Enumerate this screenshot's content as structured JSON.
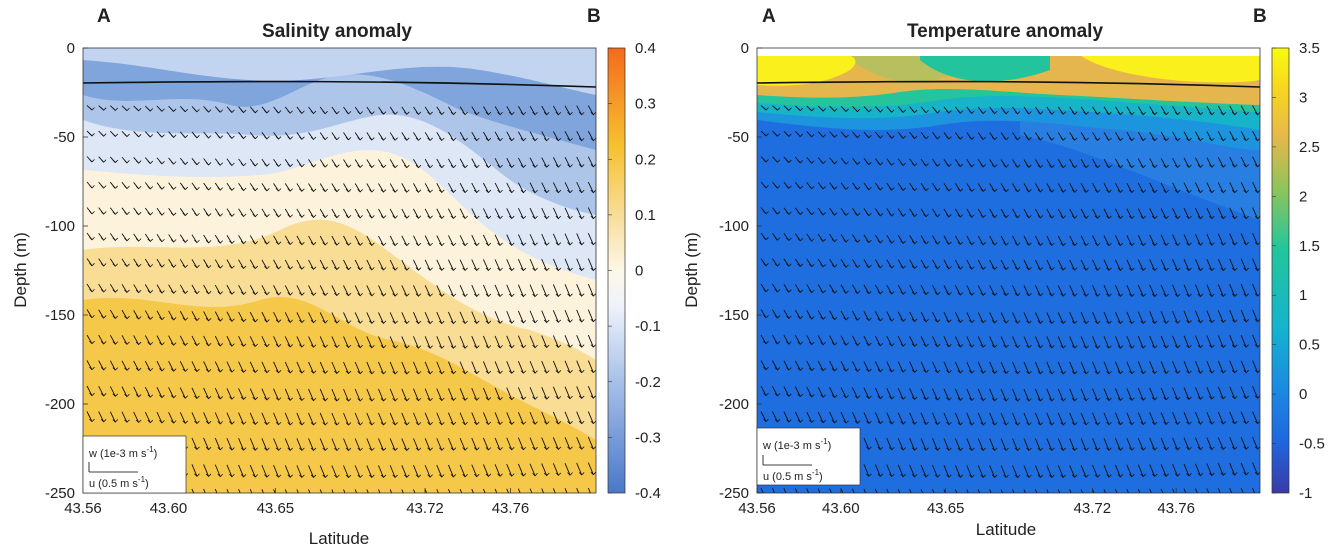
{
  "chart_data": [
    {
      "type": "heatmap",
      "panel_letter_left": "A",
      "panel_letter_right": "B",
      "title": "Salinity anomaly",
      "xlabel": "Latitude",
      "ylabel": "Depth (m)",
      "xlim": [
        43.56,
        43.8
      ],
      "ylim": [
        -250,
        0
      ],
      "x_ticks": [
        43.56,
        43.6,
        43.65,
        43.72,
        43.76
      ],
      "x_tick_labels": [
        "43.56",
        "43.60",
        "43.65",
        "43.72",
        "43.76"
      ],
      "y_ticks": [
        0,
        -50,
        -100,
        -150,
        -200,
        -250
      ],
      "y_tick_labels": [
        "0",
        "-50",
        "-100",
        "-150",
        "-200",
        "-250"
      ],
      "colorbar": {
        "range": [
          -0.4,
          0.4
        ],
        "ticks": [
          0.4,
          0.3,
          0.2,
          0.1,
          0,
          -0.1,
          -0.2,
          -0.3,
          -0.4
        ],
        "tick_labels": [
          "0.4",
          "0.3",
          "0.2",
          "0.1",
          "0",
          "-0.1",
          "-0.2",
          "-0.3",
          "-0.4"
        ],
        "colors": [
          "#4a78c8",
          "#8fb0e2",
          "#dce6f6",
          "#fbf3de",
          "#f7dc97",
          "#f6c437",
          "#f7a21a",
          "#f47420"
        ]
      },
      "legend": {
        "w_label": "w (1e-3 m s",
        "w_unit_exp": "-1",
        "u_label": "u (0.5 m s",
        "u_unit_exp": "-1",
        "close": ")"
      }
    },
    {
      "type": "heatmap",
      "panel_letter_left": "A",
      "panel_letter_right": "B",
      "title": "Temperature anomaly",
      "xlabel": "Latitude",
      "ylabel": "Depth (m)",
      "xlim": [
        43.56,
        43.8
      ],
      "ylim": [
        -250,
        0
      ],
      "x_ticks": [
        43.56,
        43.6,
        43.65,
        43.72,
        43.76
      ],
      "x_tick_labels": [
        "43.56",
        "43.60",
        "43.65",
        "43.72",
        "43.76"
      ],
      "y_ticks": [
        0,
        -50,
        -100,
        -150,
        -200,
        -250
      ],
      "y_tick_labels": [
        "0",
        "-50",
        "-100",
        "-150",
        "-200",
        "-250"
      ],
      "colorbar": {
        "range": [
          -1,
          3.5
        ],
        "ticks": [
          3.5,
          3,
          2.5,
          2,
          1.5,
          1,
          0.5,
          0,
          -0.5,
          -1
        ],
        "tick_labels": [
          "3.5",
          "3",
          "2.5",
          "2",
          "1.5",
          "1",
          "0.5",
          "0",
          "-0.5",
          "-1"
        ],
        "colors": [
          "#3b3aa8",
          "#1f6ee0",
          "#1b8fe0",
          "#1ab2c8",
          "#22c3a2",
          "#8cc45c",
          "#e3b84a",
          "#f8d21e",
          "#f9f914"
        ]
      },
      "legend": {
        "w_label": "w (1e-3 m s",
        "w_unit_exp": "-1",
        "u_label": "u (0.5 m s",
        "u_unit_exp": "-1",
        "close": ")"
      }
    }
  ]
}
